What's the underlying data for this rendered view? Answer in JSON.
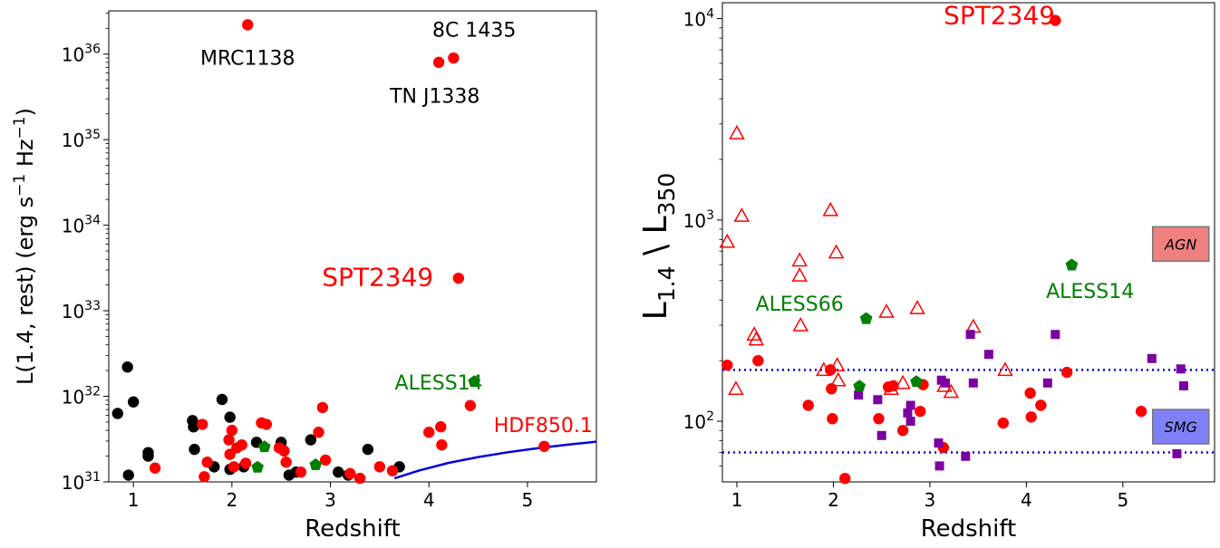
{
  "chart_data": [
    {
      "type": "scatter",
      "title": "",
      "xlabel": "Redshift",
      "ylabel": "L(1.4, rest) (erg s",
      "ylabel_parts": {
        "main": "L(1.4, rest) (erg s",
        "exp1": "−1",
        "mid": " Hz",
        "exp2": "−1",
        "end": ")"
      },
      "xscale": "linear",
      "yscale": "log",
      "xlim": [
        0.75,
        5.7
      ],
      "ylim": [
        1e+31,
        3.2e+36
      ],
      "xticks": [
        1,
        2,
        3,
        4,
        5
      ],
      "xtick_labels": [
        "1",
        "2",
        "3",
        "4",
        "5"
      ],
      "yticks": [
        1e+31,
        1e+32,
        1e+33,
        1e+34,
        1e+35,
        1e+36
      ],
      "ytick_labels": [
        {
          "base": "10",
          "exp": "31"
        },
        {
          "base": "10",
          "exp": "32"
        },
        {
          "base": "10",
          "exp": "33"
        },
        {
          "base": "10",
          "exp": "34"
        },
        {
          "base": "10",
          "exp": "35"
        },
        {
          "base": "10",
          "exp": "36"
        }
      ],
      "grid": false,
      "colors": {
        "red": "#ff0000",
        "black": "#000000",
        "green": "#008000",
        "blue": "#0000dd"
      },
      "series": [
        {
          "marker": "circle",
          "color": "#000000",
          "x": [
            0.84,
            0.94,
            0.95,
            1.0,
            1.15,
            1.15,
            1.6,
            1.61,
            1.62,
            1.82,
            1.9,
            1.98,
            1.98,
            2.12,
            2.25,
            2.5,
            2.58,
            2.65,
            2.8,
            3.08,
            3.18,
            3.38,
            3.7
          ],
          "y": [
            6.3e+31,
            2.2e+32,
            1.2e+31,
            8.6e+31,
            2.2e+31,
            2e+31,
            5.2e+31,
            4.4e+31,
            2.4e+31,
            1.5e+31,
            9.2e+31,
            5.7e+31,
            1.4e+31,
            1.5e+31,
            2.9e+31,
            2.9e+31,
            1.2e+31,
            1.3e+31,
            3.1e+31,
            1.3e+31,
            1.2e+31,
            2.4e+31,
            1.5e+31
          ]
        },
        {
          "marker": "circle",
          "color": "#ff0000",
          "x": [
            1.22,
            1.7,
            1.72,
            1.75,
            1.97,
            1.98,
            2.0,
            2.02,
            2.05,
            2.1,
            2.14,
            2.3,
            2.35,
            2.48,
            2.53,
            2.55,
            2.7,
            2.88,
            2.92,
            2.95,
            3.2,
            3.3,
            3.5,
            3.63,
            4.0,
            4.12,
            4.13,
            4.42,
            5.17
          ],
          "y": [
            1.45e+31,
            4.7e+31,
            1.15e+31,
            1.7e+31,
            3.1e+31,
            2.1e+31,
            4e+31,
            1.5e+31,
            2.5e+31,
            2.7e+31,
            1.65e+31,
            4.9e+31,
            4.7e+31,
            2.5e+31,
            2.3e+31,
            1.7e+31,
            1.3e+31,
            3.8e+31,
            7.4e+31,
            1.8e+31,
            1.25e+31,
            1.1e+31,
            1.5e+31,
            1.35e+31,
            3.8e+31,
            4.4e+31,
            2.7e+31,
            7.8e+31,
            2.6e+31
          ]
        },
        {
          "marker": "circle",
          "color": "#ff0000",
          "x": [
            2.16,
            4.1,
            4.25,
            4.3
          ],
          "y": [
            2.2e+36,
            8e+35,
            9e+35,
            2.4e+33
          ]
        },
        {
          "marker": "pentagon",
          "color": "#008000",
          "x": [
            2.26,
            2.33,
            2.85,
            4.46
          ],
          "y": [
            1.5e+31,
            2.6e+31,
            1.6e+31,
            1.5e+32
          ]
        }
      ],
      "curve": {
        "color": "#0000dd",
        "x": [
          3.65,
          3.9,
          4.2,
          4.5,
          4.8,
          5.1,
          5.4,
          5.7
        ],
        "y": [
          1.1e+31,
          1.36e+31,
          1.67e+31,
          1.95e+31,
          2.22e+31,
          2.47e+31,
          2.72e+31,
          2.95e+31
        ]
      },
      "annotations": [
        {
          "text": "MRC1138",
          "x": 2.16,
          "y": 7.5e+35,
          "color": "#000000",
          "size": 22,
          "anchor": "middle"
        },
        {
          "text": "8C 1435",
          "x": 4.46,
          "y": 1.6e+36,
          "color": "#000000",
          "size": 22,
          "anchor": "middle"
        },
        {
          "text": "TN J1338",
          "x": 4.06,
          "y": 2.7e+35,
          "color": "#000000",
          "size": 22,
          "anchor": "middle"
        },
        {
          "text": "SPT2349",
          "x": 3.48,
          "y": 1.95e+33,
          "color": "#ff0000",
          "size": 28,
          "anchor": "middle"
        },
        {
          "text": "ALESS14",
          "x": 4.1,
          "y": 1.2e+32,
          "color": "#008000",
          "size": 22,
          "anchor": "middle"
        },
        {
          "text": "HDF850.1",
          "x": 5.16,
          "y": 3.8e+31,
          "color": "#ff0000",
          "size": 22,
          "anchor": "middle"
        }
      ]
    },
    {
      "type": "scatter",
      "title": "",
      "xlabel": "Redshift",
      "ylabel_parts": {
        "main": "L",
        "sub1": "1.4",
        "mid": " \\ L",
        "sub2": "350"
      },
      "xscale": "linear",
      "yscale": "log",
      "xlim": [
        0.85,
        5.95
      ],
      "ylim": [
        50,
        12000
      ],
      "xticks": [
        1,
        2,
        3,
        4,
        5
      ],
      "xtick_labels": [
        "1",
        "2",
        "3",
        "4",
        "5"
      ],
      "yticks": [
        100,
        1000,
        10000
      ],
      "ytick_labels": [
        {
          "base": "10",
          "exp": "2"
        },
        {
          "base": "10",
          "exp": "3"
        },
        {
          "base": "10",
          "exp": "4"
        }
      ],
      "grid": false,
      "hlines": [
        180,
        70
      ],
      "series": [
        {
          "marker": "triangle-open",
          "color": "#ff0000",
          "x": [
            0.9,
            0.99,
            1.0,
            1.05,
            1.18,
            1.2,
            1.65,
            1.65,
            1.66,
            1.9,
            1.97,
            2.03,
            2.04,
            2.05,
            2.55,
            2.6,
            2.72,
            2.87,
            3.15,
            3.22,
            3.45,
            3.78
          ],
          "y": [
            780,
            145,
            2700,
            1050,
            270,
            255,
            630,
            530,
            300,
            180,
            1120,
            690,
            190,
            160,
            350,
            145,
            155,
            365,
            150,
            140,
            295,
            180
          ]
        },
        {
          "marker": "circle",
          "color": "#ff0000",
          "x": [
            0.9,
            1.22,
            1.74,
            1.97,
            1.98,
            1.99,
            2.12,
            2.47,
            2.57,
            2.62,
            2.72,
            2.9,
            2.93,
            3.14,
            3.76,
            4.04,
            4.05,
            4.15,
            4.42,
            5.19
          ],
          "y": [
            190,
            200,
            120,
            180,
            145,
            103,
            52,
            103,
            148,
            150,
            90,
            112,
            152,
            74,
            98,
            138,
            105,
            120,
            175,
            112
          ]
        },
        {
          "marker": "circle",
          "color": "#ff0000",
          "x": [
            4.3
          ],
          "y": [
            9800
          ]
        },
        {
          "marker": "square",
          "color": "#7b00a0",
          "x": [
            2.26,
            2.46,
            2.5,
            2.77,
            2.8,
            2.8,
            3.09,
            3.1,
            3.12,
            3.16,
            3.37,
            3.42,
            3.45,
            3.61,
            4.22,
            4.3,
            5.3,
            5.56,
            5.6,
            5.63
          ],
          "y": [
            135,
            128,
            85,
            110,
            120,
            100,
            78,
            60,
            160,
            155,
            67,
            270,
            155,
            215,
            155,
            270,
            205,
            69,
            182,
            150
          ]
        },
        {
          "marker": "pentagon",
          "color": "#008000",
          "x": [
            2.27,
            2.34,
            2.86,
            4.47
          ],
          "y": [
            150,
            325,
            158,
            600
          ]
        }
      ],
      "annotations": [
        {
          "text": "SPT2349",
          "x": 3.72,
          "y": 9400,
          "color": "#ff0000",
          "size": 28,
          "anchor": "middle"
        },
        {
          "text": "ALESS66",
          "x": 1.65,
          "y": 355,
          "color": "#008000",
          "size": 22,
          "anchor": "middle"
        },
        {
          "text": "ALESS14",
          "x": 4.66,
          "y": 410,
          "color": "#008000",
          "size": 22,
          "anchor": "middle"
        }
      ],
      "legend_boxes": [
        {
          "text": "AGN",
          "color": "#f08080",
          "x": 5.6,
          "y": 760
        },
        {
          "text": "SMG",
          "color": "#8080f8",
          "x": 5.6,
          "y": 94
        }
      ]
    }
  ]
}
